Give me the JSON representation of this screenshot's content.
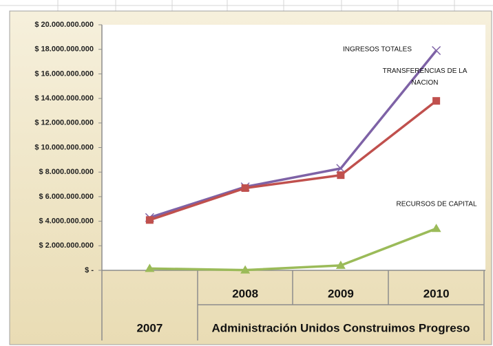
{
  "chart_data": {
    "type": "line",
    "categories": [
      "2007",
      "2008",
      "2009",
      "2010"
    ],
    "category_group": "Administración Unidos Construimos Progreso",
    "series": [
      {
        "name": "INGRESOS TOTALES",
        "color": "#7e62a6",
        "marker": "x",
        "values": [
          4300000000,
          6800000000,
          8300000000,
          17900000000
        ]
      },
      {
        "name": "TRANSFERENCIAS  DE LA NACION",
        "color": "#c0504d",
        "marker": "square",
        "values": [
          4100000000,
          6700000000,
          7750000000,
          13800000000
        ]
      },
      {
        "name": "RECURSOS DE CAPITAL",
        "color": "#9bbb59",
        "marker": "triangle",
        "values": [
          150000000,
          20000000,
          400000000,
          3400000000
        ]
      }
    ],
    "ylim": [
      0,
      20000000000
    ],
    "yticks": [
      {
        "value": 0,
        "label": "$ -"
      },
      {
        "value": 2000000000,
        "label": "$ 2.000.000.000"
      },
      {
        "value": 4000000000,
        "label": "$ 4.000.000.000"
      },
      {
        "value": 6000000000,
        "label": "$ 6.000.000.000"
      },
      {
        "value": 8000000000,
        "label": "$ 8.000.000.000"
      },
      {
        "value": 10000000000,
        "label": "$ 10.000.000.000"
      },
      {
        "value": 12000000000,
        "label": "$ 12.000.000.000"
      },
      {
        "value": 14000000000,
        "label": "$ 14.000.000.000"
      },
      {
        "value": 16000000000,
        "label": "$ 16.000.000.000"
      },
      {
        "value": 18000000000,
        "label": "$ 18.000.000.000"
      },
      {
        "value": 20000000000,
        "label": "$ 20.000.000.000"
      }
    ],
    "grid": false
  }
}
